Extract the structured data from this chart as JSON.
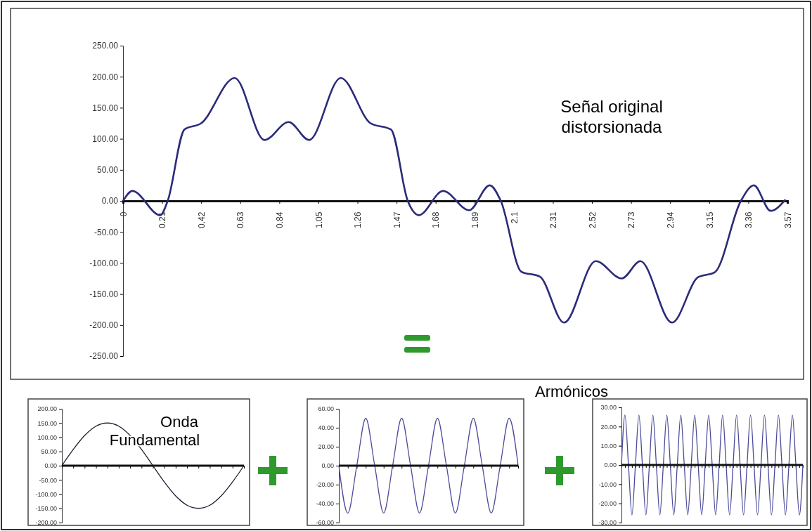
{
  "chart_data": [
    {
      "type": "line",
      "x": [
        0,
        0.05,
        0.2,
        0.24,
        0.33,
        0.42,
        0.6,
        0.76,
        0.89,
        1.0,
        1.17,
        1.33,
        1.44,
        1.53,
        1.59,
        1.72,
        1.86,
        1.97,
        2.03,
        2.14,
        2.24,
        2.37,
        2.54,
        2.68,
        2.78,
        2.95,
        3.09,
        3.18,
        3.32,
        3.39,
        3.48,
        3.56
      ],
      "values": [
        0,
        16,
        -23,
        0,
        115,
        125,
        198,
        98,
        127,
        98,
        198,
        125,
        115,
        0,
        -23,
        16,
        -15,
        25,
        0,
        -114,
        -122,
        -196,
        -97,
        -125,
        -97,
        -196,
        -123,
        -115,
        0,
        25,
        -16,
        2
      ],
      "color": "#2b2b7a",
      "xlim": [
        0,
        3.57
      ],
      "xticks": [
        0,
        0.21,
        0.42,
        0.63,
        0.84,
        1.05,
        1.26,
        1.47,
        1.68,
        1.89,
        2.1,
        2.31,
        2.52,
        2.73,
        2.94,
        3.15,
        3.36,
        3.57
      ],
      "ylim": [
        -250,
        250
      ],
      "yticks": [
        {
          "value": -250,
          "label": "-250.00"
        },
        {
          "value": -200,
          "label": "-200.00"
        },
        {
          "value": -150,
          "label": "-150.00"
        },
        {
          "value": -100,
          "label": "-100.00"
        },
        {
          "value": -50,
          "label": "-50.00"
        },
        {
          "value": 0,
          "label": "0.00"
        },
        {
          "value": 50,
          "label": "50.00"
        },
        {
          "value": 100,
          "label": "100.00"
        },
        {
          "value": 150,
          "label": "150.00"
        },
        {
          "value": 200,
          "label": "200.00"
        },
        {
          "value": 250,
          "label": "250.00"
        }
      ],
      "annotations": [
        "Señal original distorsionada"
      ]
    },
    {
      "type": "line",
      "categories": [
        null,
        null,
        null,
        null,
        null,
        null,
        null,
        null,
        null,
        null,
        null,
        null,
        null,
        null,
        null,
        null,
        null
      ],
      "values": [
        0,
        57,
        106,
        139,
        150,
        139,
        106,
        57,
        0,
        -57,
        -106,
        -139,
        -150,
        -139,
        -106,
        -57,
        0
      ],
      "color": "#1e1e2e",
      "ylim": [
        -200,
        200
      ],
      "yticks": [
        {
          "value": -200,
          "label": "-200.00"
        },
        {
          "value": -150,
          "label": "-150.00"
        },
        {
          "value": -100,
          "label": "-100.00"
        },
        {
          "value": -50,
          "label": "-50.00"
        },
        {
          "value": 0,
          "label": "0.00"
        },
        {
          "value": 50,
          "label": "50.00"
        },
        {
          "value": 100,
          "label": "100.00"
        },
        {
          "value": 150,
          "label": "150.00"
        },
        {
          "value": 200,
          "label": "200.00"
        }
      ],
      "annotations": [
        "Onda Fundamental"
      ],
      "ref_lines": [
        {
          "axis": "y",
          "value": 0,
          "color": "#111111"
        }
      ]
    },
    {
      "type": "line",
      "categories": [
        null,
        null,
        null,
        null,
        null,
        null,
        null,
        null,
        null,
        null,
        null,
        null,
        null,
        null,
        null,
        null,
        null,
        null,
        null,
        null,
        null
      ],
      "values": [
        0,
        -50,
        0,
        50,
        0,
        -50,
        0,
        50,
        0,
        -50,
        0,
        50,
        0,
        -50,
        0,
        50,
        0,
        -50,
        0,
        50,
        0
      ],
      "color": "#4a4a9a",
      "ylim": [
        -60,
        60
      ],
      "yticks": [
        {
          "value": -60,
          "label": "-60.00"
        },
        {
          "value": -40,
          "label": "-40.00"
        },
        {
          "value": -20,
          "label": "-20.00"
        },
        {
          "value": 0,
          "label": "0.00"
        },
        {
          "value": 20,
          "label": "20.00"
        },
        {
          "value": 40,
          "label": "40.00"
        },
        {
          "value": 60,
          "label": "60.00"
        }
      ],
      "ref_lines": [
        {
          "axis": "y",
          "value": 0,
          "color": "#111111"
        }
      ]
    },
    {
      "type": "line",
      "categories": [
        null,
        null,
        null,
        null,
        null,
        null,
        null,
        null,
        null,
        null,
        null,
        null,
        null,
        null,
        null,
        null,
        null,
        null,
        null,
        null,
        null,
        null,
        null,
        null,
        null,
        null,
        null,
        null,
        null,
        null,
        null,
        null,
        null,
        null,
        null,
        null,
        null,
        null,
        null,
        null,
        null,
        null,
        null,
        null,
        null,
        null,
        null,
        null,
        null,
        null,
        null,
        null,
        null
      ],
      "values": [
        0,
        26,
        0,
        -26,
        0,
        26,
        0,
        -26,
        0,
        26,
        0,
        -26,
        0,
        26,
        0,
        -26,
        0,
        26,
        0,
        -26,
        0,
        26,
        0,
        -26,
        0,
        26,
        0,
        -26,
        0,
        26,
        0,
        -26,
        0,
        26,
        0,
        -26,
        0,
        26,
        0,
        -26,
        0,
        26,
        0,
        -26,
        0,
        26,
        0,
        -26,
        0,
        26,
        0,
        -26,
        0
      ],
      "color": "#4a4a9a",
      "ylim": [
        -30,
        30
      ],
      "yticks": [
        {
          "value": -30,
          "label": "-30.00"
        },
        {
          "value": -20,
          "label": "-20.00"
        },
        {
          "value": -10,
          "label": "-10.00"
        },
        {
          "value": 0,
          "label": "0.00"
        },
        {
          "value": 10,
          "label": "10.00"
        },
        {
          "value": 20,
          "label": "20.00"
        },
        {
          "value": 30,
          "label": "30.00"
        }
      ],
      "annotations": [
        "Armónicos"
      ],
      "ref_lines": [
        {
          "axis": "y",
          "value": 0,
          "color": "#111111"
        }
      ]
    }
  ]
}
